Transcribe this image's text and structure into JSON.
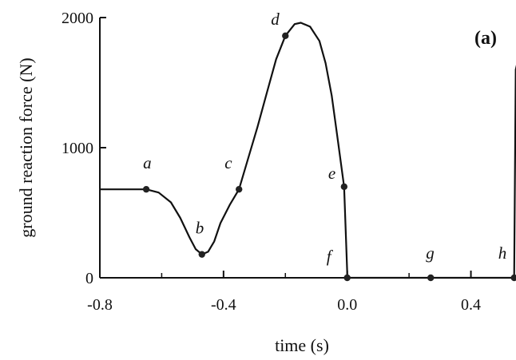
{
  "chart_data": {
    "type": "line",
    "panel_label": "(a)",
    "xlabel": "time (s)",
    "ylabel": "ground reaction force (N)",
    "xlim": [
      -0.8,
      0.52
    ],
    "ylim": [
      0,
      2000
    ],
    "x_ticks": [
      -0.8,
      -0.4,
      0.0,
      0.4
    ],
    "x_tick_labels": [
      "-0.8",
      "-0.4",
      "0.0",
      "0.4"
    ],
    "y_ticks": [
      0,
      1000,
      2000
    ],
    "y_tick_labels": [
      "0",
      "1000",
      "2000"
    ],
    "grid": false,
    "series": [
      {
        "color": "#111111",
        "x": [
          -0.8,
          -0.75,
          -0.7,
          -0.65,
          -0.61,
          -0.57,
          -0.54,
          -0.51,
          -0.49,
          -0.47,
          -0.45,
          -0.43,
          -0.41,
          -0.38,
          -0.35,
          -0.32,
          -0.29,
          -0.26,
          -0.23,
          -0.2,
          -0.17,
          -0.15,
          -0.12,
          -0.09,
          -0.07,
          -0.05,
          -0.03,
          -0.01,
          0.0,
          0.0,
          0.27,
          0.54,
          0.54,
          0.545,
          0.55,
          0.555
        ],
        "y": [
          680,
          680,
          680,
          680,
          655,
          580,
          460,
          310,
          220,
          180,
          200,
          280,
          420,
          560,
          680,
          920,
          1160,
          1420,
          1680,
          1860,
          1950,
          1960,
          1930,
          1820,
          1650,
          1400,
          1050,
          700,
          40,
          0,
          0,
          0,
          0,
          1600,
          1650,
          1600
        ]
      }
    ],
    "points": [
      {
        "label": "a",
        "x": -0.65,
        "y": 680
      },
      {
        "label": "b",
        "x": -0.47,
        "y": 180
      },
      {
        "label": "c",
        "x": -0.35,
        "y": 680
      },
      {
        "label": "d",
        "x": -0.2,
        "y": 1860
      },
      {
        "label": "e",
        "x": -0.01,
        "y": 700
      },
      {
        "label": "f",
        "x": 0.0,
        "y": 0
      },
      {
        "label": "g",
        "x": 0.27,
        "y": 0
      },
      {
        "label": "h",
        "x": 0.54,
        "y": 0
      }
    ]
  }
}
